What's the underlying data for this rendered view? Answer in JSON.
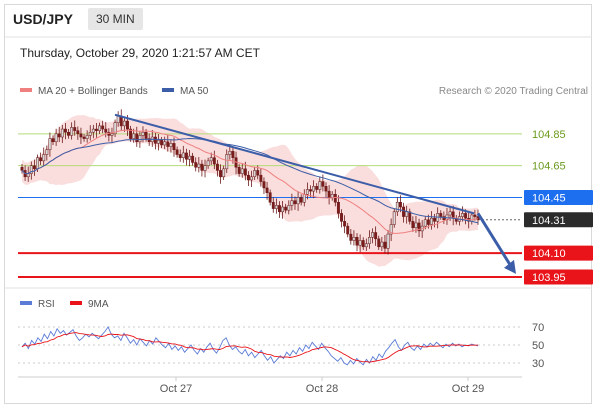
{
  "header": {
    "symbol": "USD/JPY",
    "timeframe": "30 MIN",
    "datetime": "Thursday, October 29, 2020 1:21:57 AM CET"
  },
  "credit": "Research © 2020 Trading Central",
  "colors": {
    "price_line": "#3c5ea8",
    "bollinger_fill": "#f7c6c6",
    "ma20": "#f08080",
    "resistance_green": "#9acd32",
    "pivot_blue": "#1e6ff0",
    "support_red": "#e8141a",
    "current_price_bg": "#2b2b2b",
    "rsi": "#5a7bd6",
    "rsi_ma": "#e8141a"
  },
  "chart_data": [
    {
      "type": "candlestick",
      "title": "",
      "legend": [
        {
          "name": "MA 20 + Bollinger Bands",
          "color": "#f08080"
        },
        {
          "name": "MA 50",
          "color": "#3c5ea8"
        }
      ],
      "x_ticks": [
        "Oct 27",
        "Oct 28",
        "Oct 29"
      ],
      "ylim": [
        103.9,
        105.05
      ],
      "levels": [
        {
          "value": 104.85,
          "label": "104.85",
          "kind": "resistance",
          "color": "#6b9a1e",
          "line": "#b5dc7a"
        },
        {
          "value": 104.65,
          "label": "104.65",
          "kind": "resistance",
          "color": "#6b9a1e",
          "line": "#b5dc7a"
        },
        {
          "value": 104.45,
          "label": "104.45",
          "kind": "pivot",
          "color": "#1e6ff0",
          "line": "#1e6ff0"
        },
        {
          "value": 104.31,
          "label": "104.31",
          "kind": "last",
          "color": "#2b2b2b",
          "line": "#666666"
        },
        {
          "value": 104.1,
          "label": "104.10",
          "kind": "support",
          "color": "#e8141a",
          "line": "#e8141a"
        },
        {
          "value": 103.95,
          "label": "103.95",
          "kind": "support",
          "color": "#e8141a",
          "line": "#e8141a"
        }
      ],
      "trendline": {
        "start": 104.97,
        "end": 104.35
      },
      "forecast_arrow": {
        "from": 104.35,
        "to": 103.97
      },
      "close": [
        104.62,
        104.58,
        104.6,
        104.65,
        104.63,
        104.7,
        104.68,
        104.72,
        104.75,
        104.82,
        104.8,
        104.85,
        104.83,
        104.88,
        104.86,
        104.84,
        104.89,
        104.87,
        104.85,
        104.83,
        104.82,
        104.84,
        104.86,
        104.88,
        104.87,
        104.9,
        104.88,
        104.86,
        104.84,
        104.85,
        104.92,
        104.96,
        104.9,
        104.93,
        104.88,
        104.82,
        104.85,
        104.8,
        104.84,
        104.86,
        104.82,
        104.8,
        104.83,
        104.79,
        104.81,
        104.78,
        104.8,
        104.77,
        104.79,
        104.75,
        104.72,
        104.7,
        104.73,
        104.69,
        104.71,
        104.67,
        104.64,
        104.66,
        104.62,
        104.65,
        104.68,
        104.7,
        104.66,
        104.62,
        104.58,
        104.63,
        104.72,
        104.74,
        104.7,
        104.64,
        104.6,
        104.63,
        104.59,
        104.56,
        104.58,
        104.62,
        104.59,
        104.55,
        104.51,
        104.48,
        104.42,
        104.38,
        104.4,
        104.36,
        104.39,
        104.37,
        104.4,
        104.43,
        104.41,
        104.45,
        104.42,
        104.47,
        104.5,
        104.49,
        104.52,
        104.5,
        104.55,
        104.52,
        104.49,
        104.45,
        104.47,
        104.42,
        104.35,
        104.3,
        104.27,
        104.22,
        104.18,
        104.2,
        104.15,
        104.18,
        104.14,
        104.16,
        104.2,
        104.23,
        104.19,
        104.14,
        104.17,
        104.13,
        104.22,
        104.28,
        104.36,
        104.42,
        104.39,
        104.33,
        104.36,
        104.3,
        104.26,
        104.29,
        104.24,
        104.27,
        104.31,
        104.28,
        104.32,
        104.3,
        104.35,
        104.33,
        104.31,
        104.34,
        104.36,
        104.32,
        104.3,
        104.33,
        104.35,
        104.32,
        104.3,
        104.34,
        104.33,
        104.31
      ]
    },
    {
      "type": "line",
      "title": "",
      "legend": [
        {
          "name": "RSI",
          "color": "#5a7bd6"
        },
        {
          "name": "9MA",
          "color": "#e8141a"
        }
      ],
      "ylim": [
        20,
        80
      ],
      "y_ticks": [
        70,
        50,
        30
      ],
      "reference_line": 50,
      "rsi": [
        48,
        52,
        46,
        55,
        51,
        58,
        54,
        62,
        57,
        65,
        60,
        68,
        63,
        66,
        61,
        64,
        67,
        60,
        55,
        58,
        62,
        59,
        63,
        60,
        57,
        61,
        65,
        70,
        62,
        58,
        60,
        55,
        63,
        58,
        52,
        56,
        50,
        57,
        53,
        49,
        55,
        51,
        58,
        54,
        50,
        47,
        52,
        45,
        49,
        44,
        48,
        42,
        46,
        50,
        44,
        40,
        46,
        42,
        48,
        52,
        45,
        41,
        47,
        55,
        58,
        50,
        45,
        48,
        43,
        40,
        45,
        38,
        42,
        36,
        40,
        44,
        38,
        33,
        37,
        30,
        34,
        38,
        35,
        42,
        38,
        44,
        40,
        47,
        43,
        50,
        46,
        53,
        49,
        45,
        52,
        47,
        43,
        38,
        35,
        32,
        36,
        30,
        28,
        33,
        29,
        35,
        31,
        28,
        34,
        30,
        37,
        33,
        40,
        36,
        43,
        47,
        52,
        56,
        48,
        44,
        50,
        53,
        47,
        44,
        49,
        45,
        51,
        48,
        52,
        49,
        53,
        50,
        47,
        51,
        48,
        52,
        49,
        51,
        48,
        50,
        49,
        51,
        50,
        49
      ]
    }
  ]
}
